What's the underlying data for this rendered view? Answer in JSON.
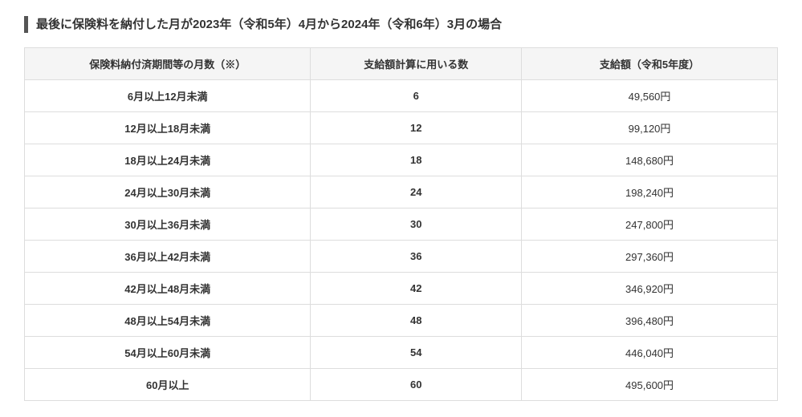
{
  "title": "最後に保険料を納付した月が2023年（令和5年）4月から2024年（令和6年）3月の場合",
  "table": {
    "columns": [
      "保険料納付済期間等の月数（※）",
      "支給額計算に用いる数",
      "支給額（令和5年度）"
    ],
    "rows": [
      {
        "period": "6月以上12月未満",
        "number": "6",
        "amount": "49,560円"
      },
      {
        "period": "12月以上18月未満",
        "number": "12",
        "amount": "99,120円"
      },
      {
        "period": "18月以上24月未満",
        "number": "18",
        "amount": "148,680円"
      },
      {
        "period": "24月以上30月未満",
        "number": "24",
        "amount": "198,240円"
      },
      {
        "period": "30月以上36月未満",
        "number": "30",
        "amount": "247,800円"
      },
      {
        "period": "36月以上42月未満",
        "number": "36",
        "amount": "297,360円"
      },
      {
        "period": "42月以上48月未満",
        "number": "42",
        "amount": "346,920円"
      },
      {
        "period": "48月以上54月未満",
        "number": "48",
        "amount": "396,480円"
      },
      {
        "period": "54月以上60月未満",
        "number": "54",
        "amount": "446,040円"
      },
      {
        "period": "60月以上",
        "number": "60",
        "amount": "495,600円"
      }
    ]
  }
}
